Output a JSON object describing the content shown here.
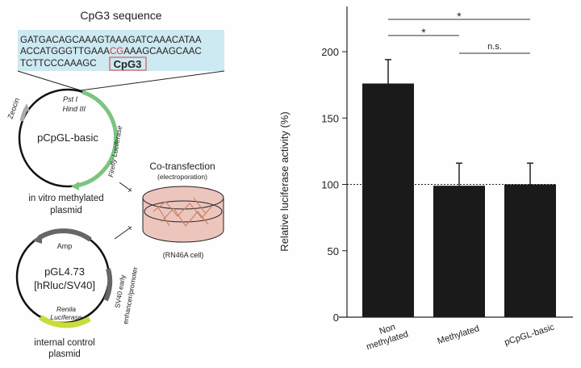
{
  "diagram": {
    "sequence_title": "CpG3 sequence",
    "sequence_lines": [
      "GATGACAGCAAAGTAAAGATCAAACATAA",
      "ACCATGGGTTGAAA",
      "CG",
      "AAAGCAAGCAAC",
      "TCTTCCCAAAGC"
    ],
    "cpg_label": "CpG3",
    "cpg_highlight_color": "#d9363e",
    "sequence_box_color": "#cde9f1",
    "plasmid1": {
      "name": "pCpGL-basic",
      "site1": "Pst I",
      "site2": "Hind III",
      "gene1": "Zeocin",
      "gene2": "Firefly Luciferase",
      "caption1": "in vitro methylated",
      "caption2": "plasmid",
      "luciferase_color": "#7cc47f"
    },
    "plasmid2": {
      "name1": "pGL4.73",
      "name2": "[hRluc/SV40]",
      "gene1": "Amp",
      "gene2a": "SV40 early",
      "gene2b": "enhancer/promoter",
      "gene3a": "Renila",
      "gene3b": "Luciferase",
      "caption1": "internal control",
      "caption2": "plasmid",
      "renilla_color": "#c8dc3c"
    },
    "transfection": {
      "title": "Co-transfection",
      "subtitle": "(electroporation)",
      "cell_label": "(RN46A cell)",
      "dish_color": "#ecc5bd"
    }
  },
  "chart_data": {
    "type": "bar",
    "categories": [
      "Non methylated",
      "Methylated",
      "pCpGL-basic"
    ],
    "category_lines": [
      [
        "Non",
        "methylated"
      ],
      [
        "Methylated"
      ],
      [
        "pCpGL-basic"
      ]
    ],
    "values": [
      176,
      99,
      100
    ],
    "errors": [
      18,
      17,
      16
    ],
    "ylabel": "Relative luciferase activity (%)",
    "ylim": [
      0,
      235
    ],
    "yticks": [
      "0",
      "50",
      "100",
      "150",
      "200"
    ],
    "reference_line": 100,
    "bar_color": "#1a1a1a",
    "significance": [
      {
        "from": 0,
        "to": 2,
        "label": "*"
      },
      {
        "from": 0,
        "to": 1,
        "label": "*"
      },
      {
        "from": 1,
        "to": 2,
        "label": "n.s."
      }
    ]
  }
}
